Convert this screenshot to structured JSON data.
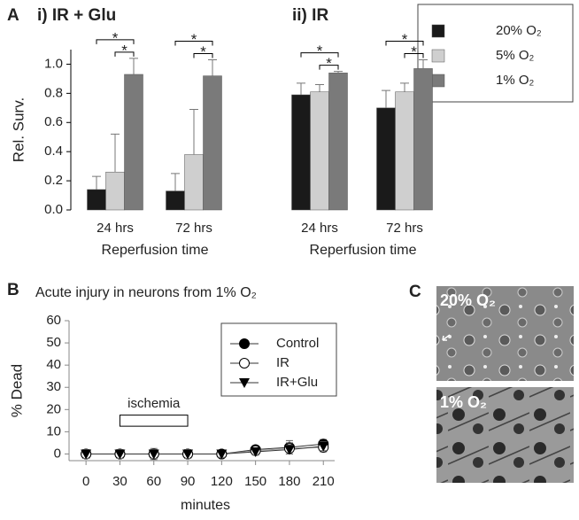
{
  "chart_data": [
    {
      "type": "bar",
      "panel": "A",
      "title": "i) IR + Glu",
      "categories": [
        "24 hrs",
        "72 hrs"
      ],
      "xlabel": "Reperfusion time",
      "ylabel": "Rel. Surv.",
      "ylim": [
        0,
        1.1
      ],
      "yticks": [
        {
          "value": 0,
          "label": "0.0"
        },
        0.2,
        0.4,
        0.6,
        0.8,
        {
          "value": 1,
          "label": "1.0"
        }
      ],
      "legend": "upper right",
      "series": [
        {
          "name": "20% O₂",
          "color": "#1a1a1a",
          "values": [
            0.14,
            0.13
          ],
          "errors": [
            0.09,
            0.12
          ]
        },
        {
          "name": "5% O₂",
          "color": "#cfcfcf",
          "values": [
            0.26,
            0.38
          ],
          "errors": [
            0.26,
            0.31
          ]
        },
        {
          "name": "1% O₂",
          "color": "#7a7a7a",
          "values": [
            0.93,
            0.92
          ],
          "errors": [
            0.11,
            0.11
          ]
        }
      ],
      "annotations": [
        "*",
        "*",
        "*",
        "*"
      ]
    },
    {
      "type": "bar",
      "title": "ii) IR",
      "categories": [
        "24 hrs",
        "72 hrs"
      ],
      "xlabel": "Reperfusion time",
      "ylim": [
        0,
        1.1
      ],
      "series": [
        {
          "color": "#1a1a1a",
          "values": [
            0.79,
            0.7
          ],
          "errors": [
            0.08,
            0.12
          ]
        },
        {
          "color": "#cfcfcf",
          "values": [
            0.81,
            0.81
          ],
          "errors": [
            0.05,
            0.06
          ]
        },
        {
          "color": "#7a7a7a",
          "values": [
            0.94,
            0.97
          ],
          "errors": [
            0.01,
            0.06
          ]
        }
      ],
      "annotations": [
        "*",
        "*",
        "*",
        "*"
      ]
    },
    {
      "type": "line",
      "panel": "B",
      "title": "Acute injury in neurons from 1% O₂",
      "xlabel": "minutes",
      "ylabel": "% Dead",
      "x": [
        0,
        30,
        60,
        90,
        120,
        150,
        180,
        210
      ],
      "xlim": [
        -15,
        220
      ],
      "xticks": [
        0,
        30,
        60,
        90,
        120,
        150,
        180,
        210
      ],
      "ylim": [
        -3,
        60
      ],
      "yticks": [
        0,
        10,
        20,
        30,
        40,
        50,
        60
      ],
      "legend": "upper right",
      "series": [
        {
          "name": "Control",
          "color": "#000000",
          "marker": "filled-circle",
          "values": [
            0,
            0,
            0,
            0,
            0,
            2,
            3,
            4.5
          ],
          "errors": [
            2,
            2,
            2.5,
            2,
            1.5,
            1.5,
            3,
            2
          ]
        },
        {
          "name": "IR",
          "color": "#000000",
          "marker": "open-circle",
          "values": [
            0,
            0,
            0,
            0,
            0,
            1.5,
            2.5,
            3
          ],
          "errors": [
            2,
            2,
            2,
            2,
            1.5,
            1.5,
            2.5,
            2
          ]
        },
        {
          "name": "IR+Glu",
          "color": "#000000",
          "marker": "triangle-down",
          "values": [
            0,
            0,
            0,
            0,
            0,
            1,
            2,
            3.5
          ],
          "errors": [
            2,
            2,
            2,
            2,
            1.5,
            1.5,
            2,
            2
          ]
        }
      ],
      "span": {
        "label": "ischemia",
        "x": [
          30,
          90
        ]
      }
    }
  ],
  "panel_c": {
    "panel": "C",
    "images": [
      "20% O₂",
      "1% O₂"
    ]
  }
}
